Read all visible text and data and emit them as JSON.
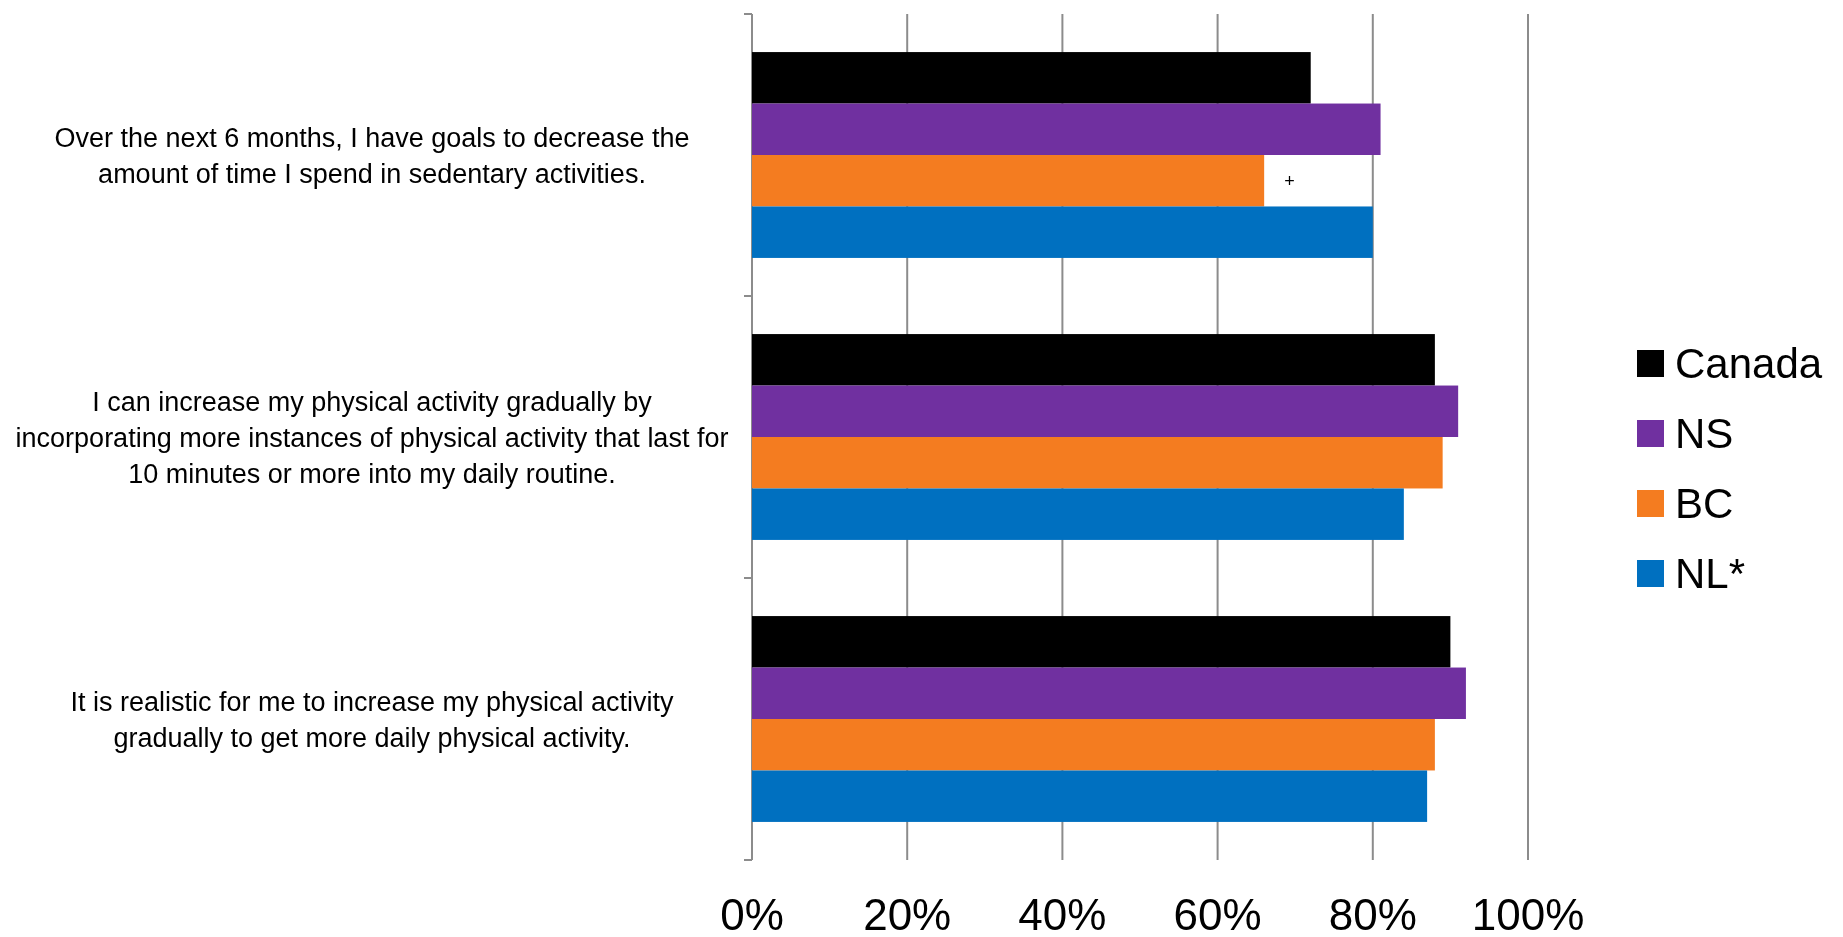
{
  "chart_data": {
    "type": "bar",
    "orientation": "horizontal",
    "categories": [
      "Over the next 6 months, I have goals to decrease the amount of time I spend in sedentary activities.",
      "I can increase my physical activity gradually by incorporating more instances of physical activity that last for 10 minutes or more into my daily routine.",
      "It is realistic for me to increase my physical activity gradually to get more daily physical activity."
    ],
    "series": [
      {
        "name": "Canada",
        "color": "#000000",
        "values": [
          72,
          88,
          90
        ]
      },
      {
        "name": "NS",
        "color": "#7030a0",
        "values": [
          81,
          91,
          92
        ]
      },
      {
        "name": "BC",
        "color": "#f47c20",
        "values": [
          66,
          89,
          88
        ]
      },
      {
        "name": "NL*",
        "color": "#0070c0",
        "values": [
          80,
          84,
          87
        ]
      }
    ],
    "xlim": [
      0,
      100
    ],
    "xticks": [
      {
        "value": 0,
        "label": "0%"
      },
      {
        "value": 20,
        "label": "20%"
      },
      {
        "value": 40,
        "label": "40%"
      },
      {
        "value": 60,
        "label": "60%"
      },
      {
        "value": 80,
        "label": "80%"
      },
      {
        "value": 100,
        "label": "100%"
      }
    ],
    "grid": "x",
    "legend": "right",
    "annotations": [
      {
        "text": "+",
        "x": 66,
        "y": "Over the next 6 months, I have goals to decrease the amount of time I spend in sedentary activities."
      }
    ]
  }
}
